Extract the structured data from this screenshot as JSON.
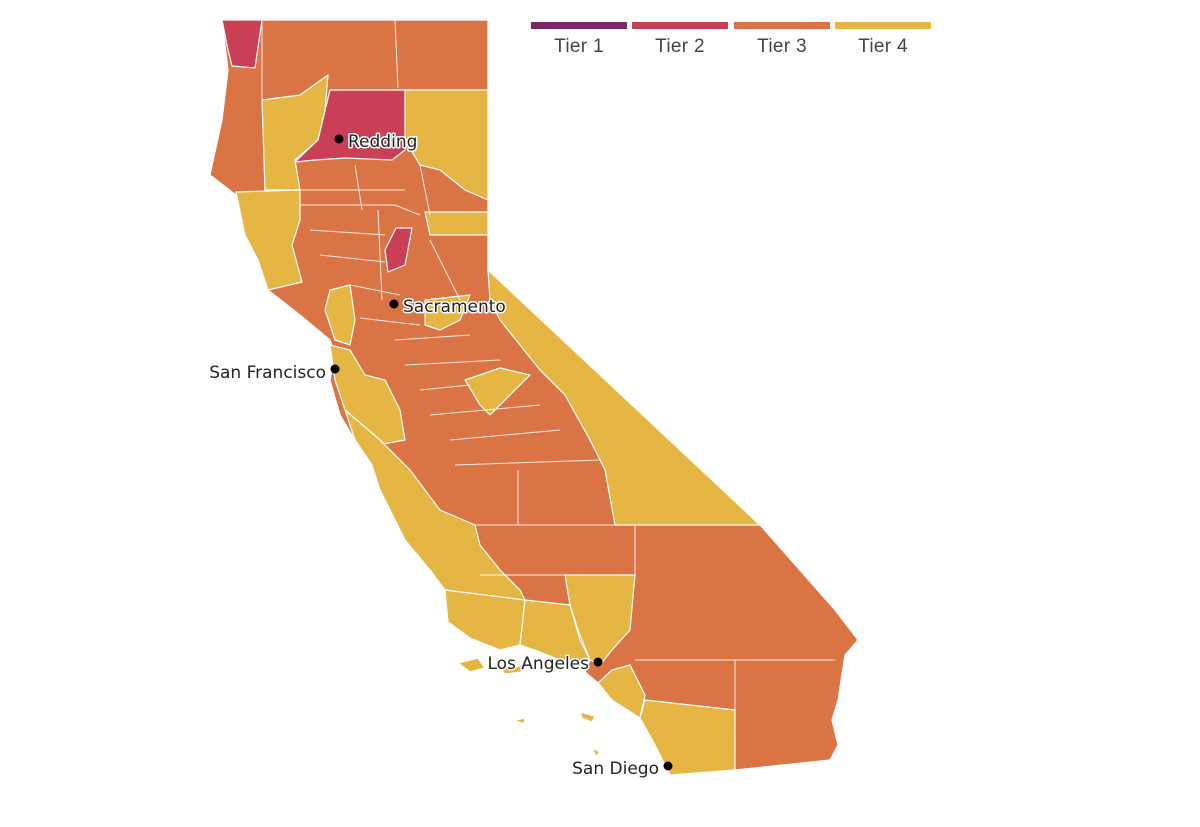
{
  "legend": {
    "tiers": [
      {
        "label": "Tier 1",
        "color": "#7b2b63"
      },
      {
        "label": "Tier 2",
        "color": "#c93f55"
      },
      {
        "label": "Tier 3",
        "color": "#db7445"
      },
      {
        "label": "Tier 4",
        "color": "#e6b644"
      }
    ]
  },
  "cities": [
    {
      "name": "Redding"
    },
    {
      "name": "Sacramento"
    },
    {
      "name": "San Francisco"
    },
    {
      "name": "Los Angeles"
    },
    {
      "name": "San Diego"
    }
  ]
}
